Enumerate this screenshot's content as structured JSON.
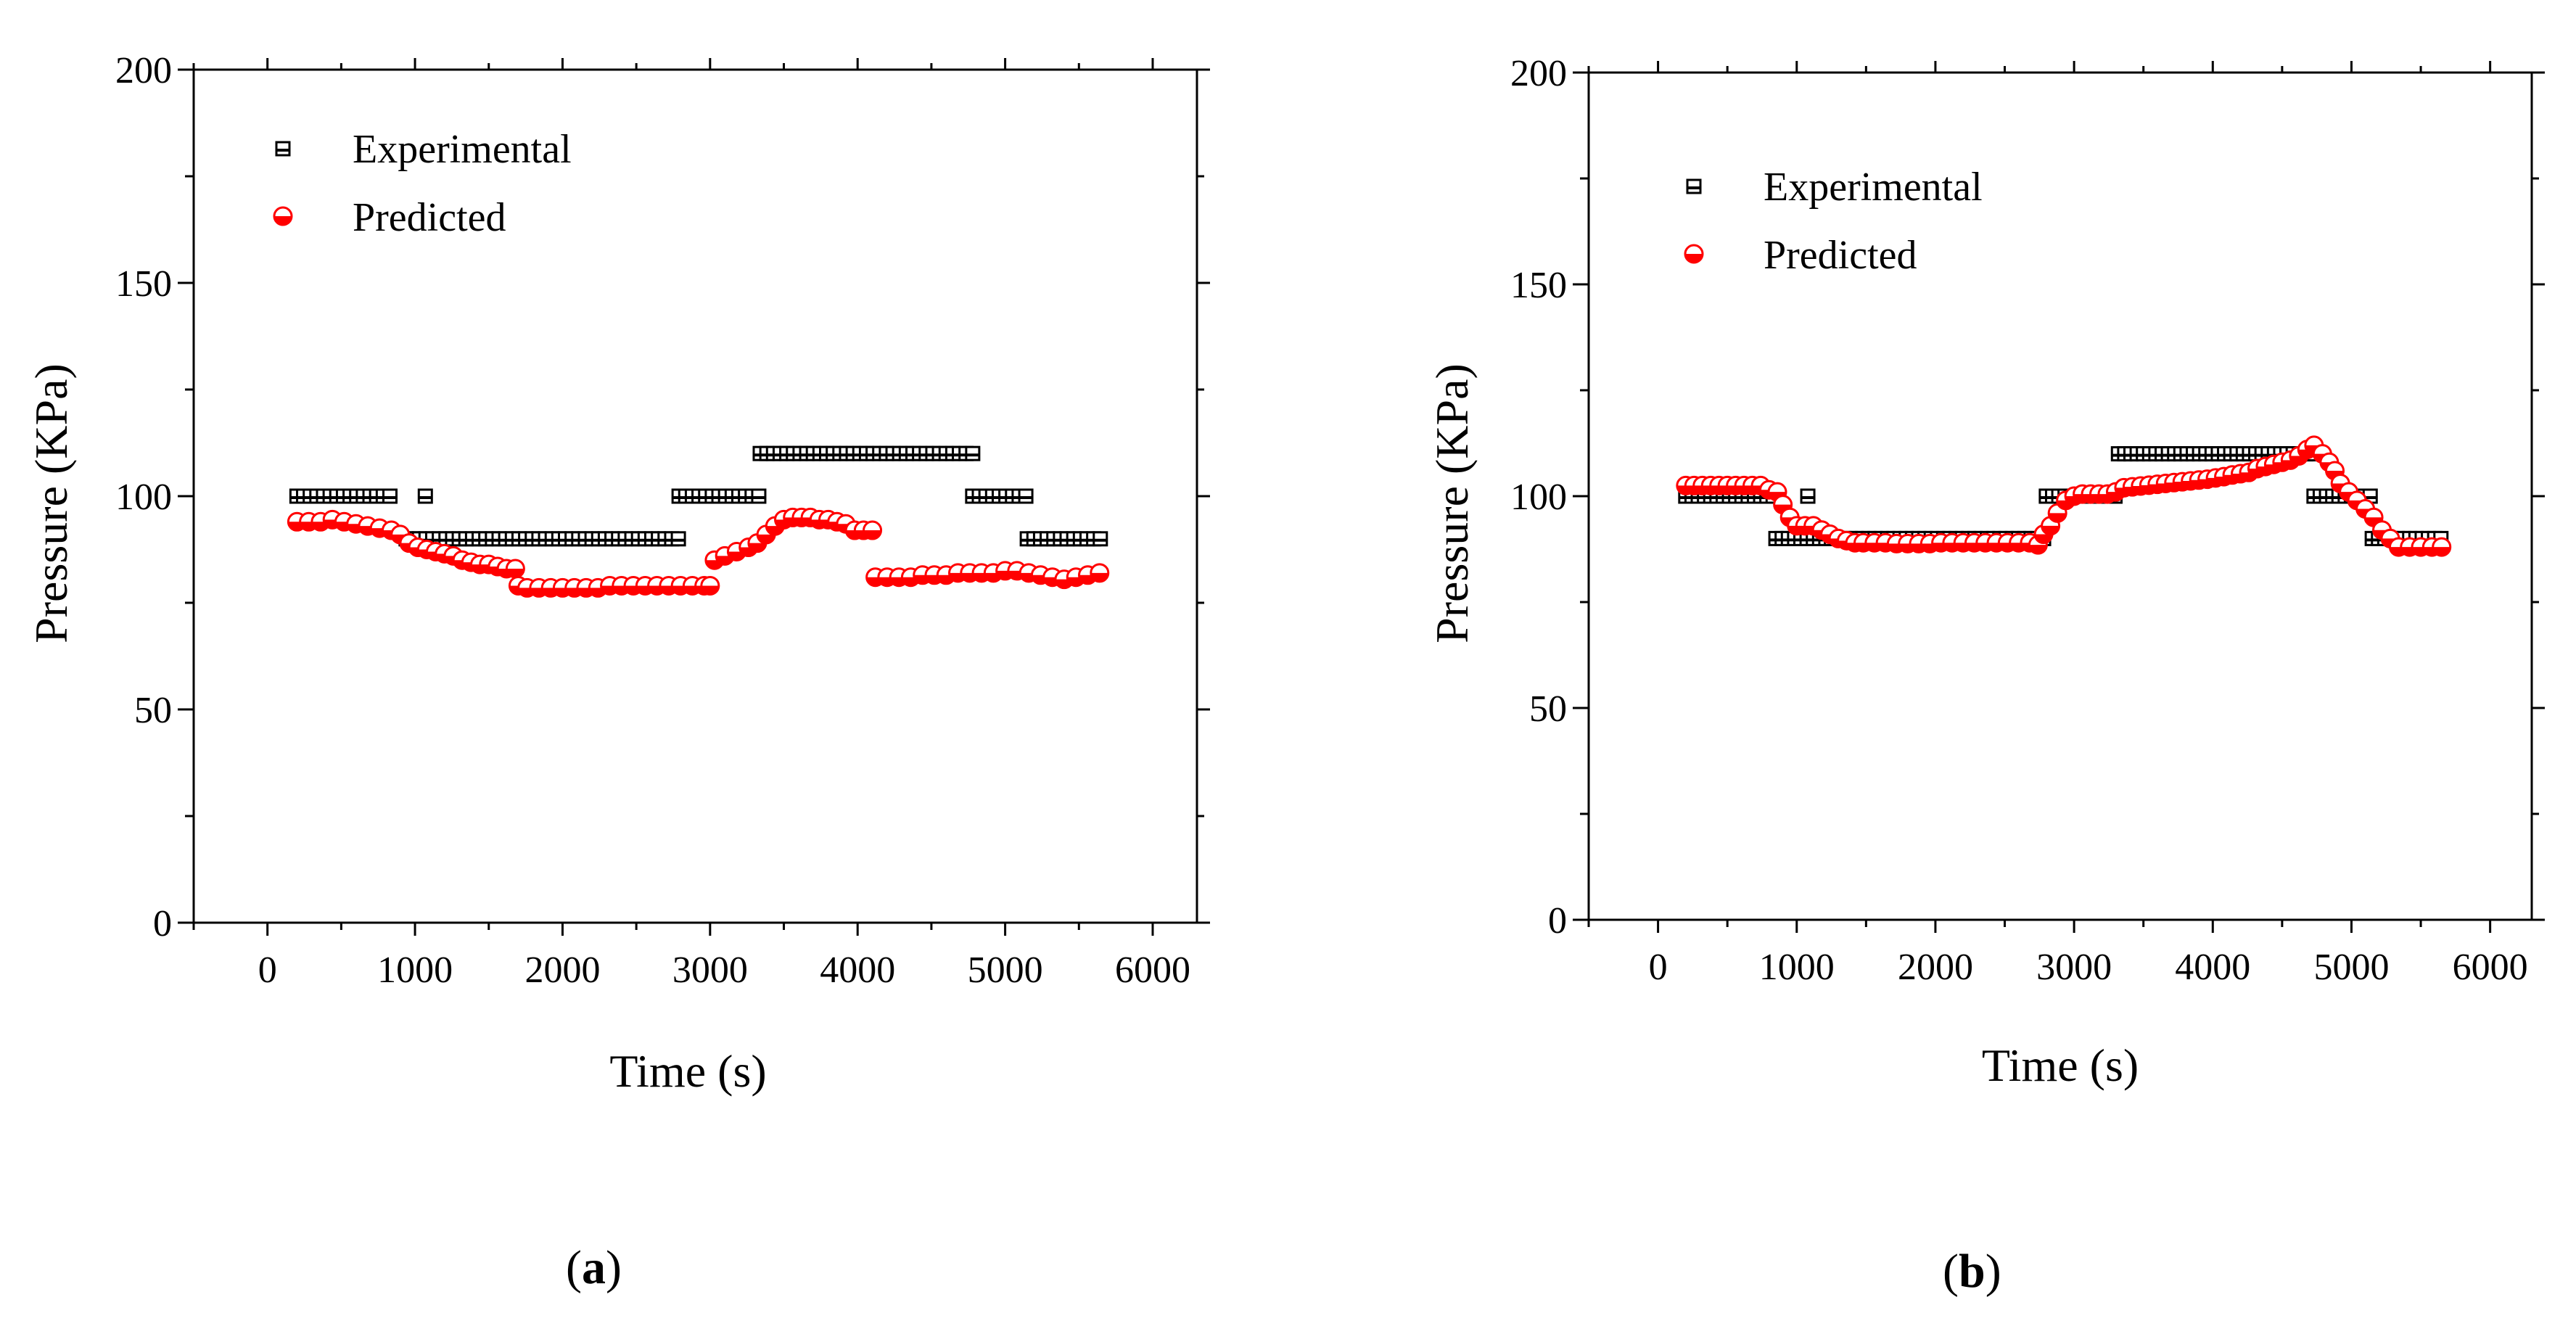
{
  "chart_data": [
    {
      "type": "scatter",
      "panel_label": "a",
      "title": "",
      "xlabel": "Time (s)",
      "ylabel": "Pressure (KPa)",
      "xlim": [
        -500,
        6300
      ],
      "ylim": [
        0,
        200
      ],
      "xticks": [
        0,
        1000,
        2000,
        3000,
        4000,
        5000,
        6000
      ],
      "yticks": [
        0,
        50,
        100,
        150,
        200
      ],
      "legend_position": "top-left",
      "series": [
        {
          "name": "Experimental",
          "marker": "square",
          "color": "#000000",
          "segments": [
            {
              "x": [
                200,
                870
              ],
              "y": 100,
              "step": 45
            },
            {
              "x": [
                1070,
                1070
              ],
              "y": 100,
              "step": 45
            },
            {
              "x": [
                940,
                2790
              ],
              "y": 90,
              "step": 45
            },
            {
              "x": [
                2790,
                3340
              ],
              "y": 100,
              "step": 45
            },
            {
              "x": [
                3340,
                4780
              ],
              "y": 110,
              "step": 45
            },
            {
              "x": [
                4780,
                5150
              ],
              "y": 100,
              "step": 45
            },
            {
              "x": [
                5150,
                5650
              ],
              "y": 90,
              "step": 45
            }
          ]
        },
        {
          "name": "Predicted",
          "marker": "circle",
          "color": "#ff0000",
          "points": [
            [
              200,
              94
            ],
            [
              280,
              94
            ],
            [
              360,
              94
            ],
            [
              440,
              94.5
            ],
            [
              520,
              94
            ],
            [
              600,
              93.5
            ],
            [
              680,
              93
            ],
            [
              760,
              92.5
            ],
            [
              840,
              92
            ],
            [
              900,
              91
            ],
            [
              960,
              89
            ],
            [
              1020,
              88
            ],
            [
              1080,
              87.5
            ],
            [
              1140,
              87
            ],
            [
              1200,
              86.5
            ],
            [
              1260,
              86
            ],
            [
              1320,
              85
            ],
            [
              1380,
              84.5
            ],
            [
              1440,
              84
            ],
            [
              1500,
              84
            ],
            [
              1560,
              83.5
            ],
            [
              1620,
              83
            ],
            [
              1680,
              83
            ],
            [
              1700,
              79
            ],
            [
              1760,
              78.5
            ],
            [
              1840,
              78.5
            ],
            [
              1920,
              78.5
            ],
            [
              2000,
              78.5
            ],
            [
              2080,
              78.5
            ],
            [
              2160,
              78.5
            ],
            [
              2240,
              78.5
            ],
            [
              2320,
              79
            ],
            [
              2400,
              79
            ],
            [
              2480,
              79
            ],
            [
              2560,
              79
            ],
            [
              2640,
              79
            ],
            [
              2720,
              79
            ],
            [
              2800,
              79
            ],
            [
              2880,
              79
            ],
            [
              2960,
              79
            ],
            [
              3000,
              79
            ],
            [
              3030,
              85
            ],
            [
              3100,
              86
            ],
            [
              3180,
              87
            ],
            [
              3260,
              88
            ],
            [
              3320,
              89
            ],
            [
              3380,
              91
            ],
            [
              3440,
              93
            ],
            [
              3500,
              94.5
            ],
            [
              3560,
              95
            ],
            [
              3620,
              95
            ],
            [
              3680,
              95
            ],
            [
              3740,
              94.5
            ],
            [
              3800,
              94.5
            ],
            [
              3860,
              94
            ],
            [
              3920,
              93.5
            ],
            [
              3980,
              92
            ],
            [
              4040,
              92
            ],
            [
              4100,
              92
            ],
            [
              4120,
              81
            ],
            [
              4200,
              81
            ],
            [
              4280,
              81
            ],
            [
              4360,
              81
            ],
            [
              4440,
              81.5
            ],
            [
              4520,
              81.5
            ],
            [
              4600,
              81.5
            ],
            [
              4680,
              82
            ],
            [
              4760,
              82
            ],
            [
              4840,
              82
            ],
            [
              4920,
              82
            ],
            [
              5000,
              82.5
            ],
            [
              5080,
              82.5
            ],
            [
              5160,
              82
            ],
            [
              5240,
              81.5
            ],
            [
              5320,
              81
            ],
            [
              5400,
              80.5
            ],
            [
              5480,
              81
            ],
            [
              5560,
              81.5
            ],
            [
              5640,
              82
            ]
          ]
        }
      ]
    },
    {
      "type": "scatter",
      "panel_label": "b",
      "title": "",
      "xlabel": "Time (s)",
      "ylabel": "Pressure (KPa)",
      "xlim": [
        -500,
        6300
      ],
      "ylim": [
        0,
        200
      ],
      "xticks": [
        0,
        1000,
        2000,
        3000,
        4000,
        5000,
        6000
      ],
      "yticks": [
        0,
        50,
        100,
        150,
        200
      ],
      "legend_position": "top-left",
      "series": [
        {
          "name": "Experimental",
          "marker": "square",
          "color": "#000000",
          "segments": [
            {
              "x": [
                200,
                850
              ],
              "y": 100,
              "step": 45
            },
            {
              "x": [
                850,
                1250
              ],
              "y": 90,
              "step": 45
            },
            {
              "x": [
                1080,
                1080
              ],
              "y": 100,
              "step": 45
            },
            {
              "x": [
                1250,
                2800
              ],
              "y": 90,
              "step": 45
            },
            {
              "x": [
                2800,
                3320
              ],
              "y": 100,
              "step": 45
            },
            {
              "x": [
                3320,
                4730
              ],
              "y": 110,
              "step": 45
            },
            {
              "x": [
                4730,
                5150
              ],
              "y": 100,
              "step": 45
            },
            {
              "x": [
                5150,
                5650
              ],
              "y": 90,
              "step": 45
            }
          ]
        },
        {
          "name": "Predicted",
          "marker": "circle",
          "color": "#ff0000",
          "points": [
            [
              200,
              102.5
            ],
            [
              260,
              102.5
            ],
            [
              320,
              102.5
            ],
            [
              380,
              102.5
            ],
            [
              440,
              102.5
            ],
            [
              500,
              102.5
            ],
            [
              560,
              102.5
            ],
            [
              620,
              102.5
            ],
            [
              680,
              102.5
            ],
            [
              740,
              102.5
            ],
            [
              800,
              101.5
            ],
            [
              860,
              101
            ],
            [
              900,
              98
            ],
            [
              950,
              95
            ],
            [
              1000,
              93
            ],
            [
              1060,
              93
            ],
            [
              1120,
              93
            ],
            [
              1180,
              92
            ],
            [
              1240,
              91
            ],
            [
              1300,
              90
            ],
            [
              1360,
              89.5
            ],
            [
              1420,
              89
            ],
            [
              1480,
              89
            ],
            [
              1560,
              89
            ],
            [
              1640,
              89
            ],
            [
              1720,
              88.8
            ],
            [
              1800,
              88.8
            ],
            [
              1880,
              88.8
            ],
            [
              1960,
              88.8
            ],
            [
              2040,
              89
            ],
            [
              2120,
              89
            ],
            [
              2200,
              89
            ],
            [
              2280,
              89
            ],
            [
              2360,
              89
            ],
            [
              2440,
              89
            ],
            [
              2520,
              89
            ],
            [
              2600,
              89
            ],
            [
              2680,
              89
            ],
            [
              2740,
              88.5
            ],
            [
              2780,
              91
            ],
            [
              2830,
              93
            ],
            [
              2880,
              96
            ],
            [
              2940,
              99
            ],
            [
              3000,
              100
            ],
            [
              3060,
              100.5
            ],
            [
              3120,
              100.5
            ],
            [
              3180,
              100.5
            ],
            [
              3240,
              100.5
            ],
            [
              3300,
              101
            ],
            [
              3360,
              102
            ],
            [
              3420,
              102.2
            ],
            [
              3480,
              102.4
            ],
            [
              3540,
              102.6
            ],
            [
              3600,
              102.8
            ],
            [
              3660,
              103
            ],
            [
              3720,
              103.2
            ],
            [
              3780,
              103.4
            ],
            [
              3840,
              103.6
            ],
            [
              3900,
              103.8
            ],
            [
              3960,
              104
            ],
            [
              4020,
              104.3
            ],
            [
              4080,
              104.6
            ],
            [
              4140,
              105
            ],
            [
              4200,
              105.3
            ],
            [
              4260,
              105.6
            ],
            [
              4320,
              106.5
            ],
            [
              4380,
              107
            ],
            [
              4440,
              107.5
            ],
            [
              4500,
              108
            ],
            [
              4560,
              108.5
            ],
            [
              4620,
              109.5
            ],
            [
              4680,
              111
            ],
            [
              4730,
              112
            ],
            [
              4790,
              110
            ],
            [
              4840,
              108
            ],
            [
              4880,
              106
            ],
            [
              4920,
              103
            ],
            [
              4980,
              101
            ],
            [
              5040,
              99
            ],
            [
              5100,
              97
            ],
            [
              5160,
              95
            ],
            [
              5220,
              92
            ],
            [
              5280,
              90
            ],
            [
              5340,
              88
            ],
            [
              5420,
              88
            ],
            [
              5500,
              88
            ],
            [
              5580,
              88
            ],
            [
              5650,
              88
            ]
          ]
        }
      ]
    }
  ]
}
